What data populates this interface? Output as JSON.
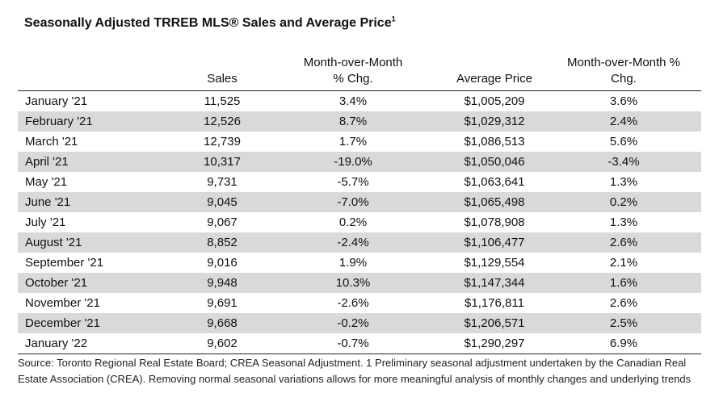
{
  "title": {
    "text": "Seasonally Adjusted TRREB MLS® Sales and Average Price",
    "superscript": "1"
  },
  "table": {
    "headers": [
      {
        "lines": [
          "",
          ""
        ]
      },
      {
        "lines": [
          "",
          "Sales"
        ]
      },
      {
        "lines": [
          "Month-over-Month",
          "% Chg."
        ]
      },
      {
        "lines": [
          "",
          "Average Price"
        ]
      },
      {
        "lines": [
          "Month-over-Month %",
          "Chg."
        ]
      }
    ],
    "rows": [
      [
        "January '21",
        "11,525",
        "3.4%",
        "$1,005,209",
        "3.6%"
      ],
      [
        "February '21",
        "12,526",
        "8.7%",
        "$1,029,312",
        "2.4%"
      ],
      [
        "March '21",
        "12,739",
        "1.7%",
        "$1,086,513",
        "5.6%"
      ],
      [
        "April '21",
        "10,317",
        "-19.0%",
        "$1,050,046",
        "-3.4%"
      ],
      [
        "May '21",
        "9,731",
        "-5.7%",
        "$1,063,641",
        "1.3%"
      ],
      [
        "June '21",
        "9,045",
        "-7.0%",
        "$1,065,498",
        "0.2%"
      ],
      [
        "July '21",
        "9,067",
        "0.2%",
        "$1,078,908",
        "1.3%"
      ],
      [
        "August '21",
        "8,852",
        "-2.4%",
        "$1,106,477",
        "2.6%"
      ],
      [
        "September '21",
        "9,016",
        "1.9%",
        "$1,129,554",
        "2.1%"
      ],
      [
        "October '21",
        "9,948",
        "10.3%",
        "$1,147,344",
        "1.6%"
      ],
      [
        "November '21",
        "9,691",
        "-2.6%",
        "$1,176,811",
        "2.6%"
      ],
      [
        "December '21",
        "9,668",
        "-0.2%",
        "$1,206,571",
        "2.5%"
      ],
      [
        "January '22",
        "9,602",
        "-0.7%",
        "$1,290,297",
        "6.9%"
      ]
    ]
  },
  "source": {
    "text": "Source: Toronto Regional Real Estate Board; CREA Seasonal Adjustment. 1 Preliminary seasonal adjustment undertaken by the Canadian Real Estate Association (CREA).  Removing normal seasonal variations allows for more meaningful analysis of monthly changes and underlying trends"
  },
  "colors": {
    "row_shade": "#d9d9d9",
    "rule": "#222222"
  }
}
